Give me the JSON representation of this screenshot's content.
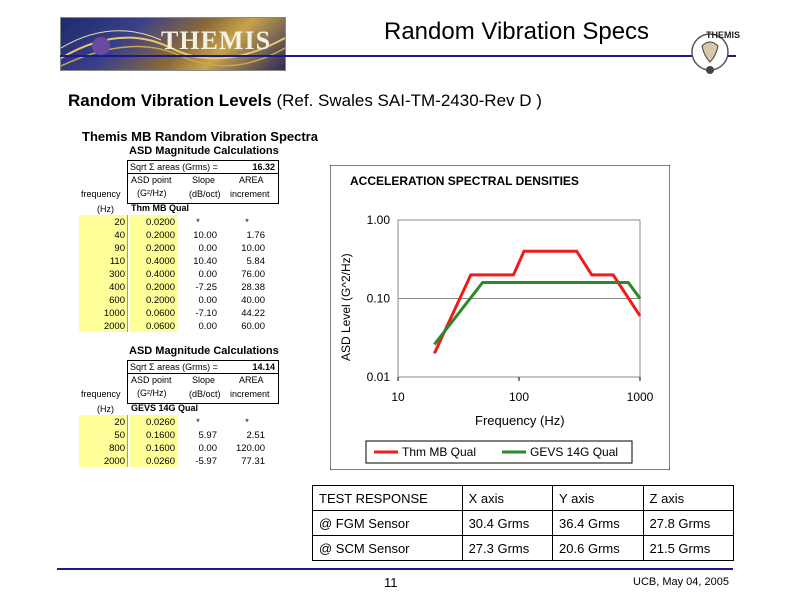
{
  "header": {
    "logo_text": "THEMIS",
    "title": "Random Vibration Specs",
    "badge_text": "THEMIS",
    "subtitle_bold": "Random Vibration Levels",
    "subtitle_rest": "(Ref. Swales SAI-TM-2430-Rev D )"
  },
  "spreadsheet": {
    "title": "Themis MB Random Vibration Spectra",
    "blocks": [
      {
        "heading": "ASD Magnitude Calculations",
        "sqrt_label": "Sqrt Σ areas (Grms) =",
        "sqrt_value": "16.32",
        "col_asd": "ASD point",
        "col_asd_unit": "(G²/Hz)",
        "col_slope": "Slope",
        "col_slope_unit": "(dB/oct)",
        "col_area": "AREA",
        "col_area_unit": "increment",
        "freq_label": "frequency",
        "freq_unit": "(Hz)",
        "qual_name": "Thm MB Qual",
        "rows": [
          {
            "f": "20",
            "asd": "0.0200",
            "slope": "*",
            "area": "*"
          },
          {
            "f": "40",
            "asd": "0.2000",
            "slope": "10.00",
            "area": "1.76"
          },
          {
            "f": "90",
            "asd": "0.2000",
            "slope": "0.00",
            "area": "10.00"
          },
          {
            "f": "110",
            "asd": "0.4000",
            "slope": "10.40",
            "area": "5.84"
          },
          {
            "f": "300",
            "asd": "0.4000",
            "slope": "0.00",
            "area": "76.00"
          },
          {
            "f": "400",
            "asd": "0.2000",
            "slope": "-7.25",
            "area": "28.38"
          },
          {
            "f": "600",
            "asd": "0.2000",
            "slope": "0.00",
            "area": "40.00"
          },
          {
            "f": "1000",
            "asd": "0.0600",
            "slope": "-7.10",
            "area": "44.22"
          },
          {
            "f": "2000",
            "asd": "0.0600",
            "slope": "0.00",
            "area": "60.00"
          }
        ]
      },
      {
        "heading": "ASD Magnitude Calculations",
        "sqrt_label": "Sqrt Σ areas (Grms) =",
        "sqrt_value": "14.14",
        "col_asd": "ASD point",
        "col_asd_unit": "(G²/Hz)",
        "col_slope": "Slope",
        "col_slope_unit": "(dB/oct)",
        "col_area": "AREA",
        "col_area_unit": "increment",
        "freq_label": "frequency",
        "freq_unit": "(Hz)",
        "qual_name": "GEVS 14G Qual",
        "rows": [
          {
            "f": "20",
            "asd": "0.0260",
            "slope": "*",
            "area": "*"
          },
          {
            "f": "50",
            "asd": "0.1600",
            "slope": "5.97",
            "area": "2.51"
          },
          {
            "f": "800",
            "asd": "0.1600",
            "slope": "0.00",
            "area": "120.00"
          },
          {
            "f": "2000",
            "asd": "0.0260",
            "slope": "-5.97",
            "area": "77.31"
          }
        ]
      }
    ]
  },
  "chart_data": {
    "type": "line",
    "title": "ACCELERATION SPECTRAL DENSITIES",
    "xlabel": "Frequency (Hz)",
    "ylabel": "ASD Level (G^2/Hz)",
    "x_scale": "log",
    "y_scale": "log",
    "xlim": [
      10,
      1000
    ],
    "ylim": [
      0.01,
      1.0
    ],
    "x_ticks": [
      "10",
      "100",
      "1000"
    ],
    "y_ticks": [
      "0.01",
      "0.10",
      "1.00"
    ],
    "legend_position": "bottom",
    "series": [
      {
        "name": "Thm MB Qual",
        "color": "#ee1c1c",
        "x": [
          20,
          40,
          90,
          110,
          300,
          400,
          600,
          1000
        ],
        "y": [
          0.02,
          0.2,
          0.2,
          0.4,
          0.4,
          0.2,
          0.2,
          0.06
        ]
      },
      {
        "name": "GEVS 14G Qual",
        "color": "#2a8a2a",
        "x": [
          20,
          50,
          800,
          1000
        ],
        "y": [
          0.026,
          0.16,
          0.16,
          0.1
        ]
      }
    ]
  },
  "response_table": {
    "headers": [
      "TEST RESPONSE",
      "X axis",
      "Y axis",
      "Z axis"
    ],
    "rows": [
      [
        "@ FGM Sensor",
        "30.4 Grms",
        "36.4 Grms",
        "27.8 Grms"
      ],
      [
        "@ SCM Sensor",
        "27.3  Grms",
        "20.6 Grms",
        "21.5 Grms"
      ]
    ]
  },
  "footer": {
    "page_number": "11",
    "date": "UCB, May 04, 2005"
  }
}
